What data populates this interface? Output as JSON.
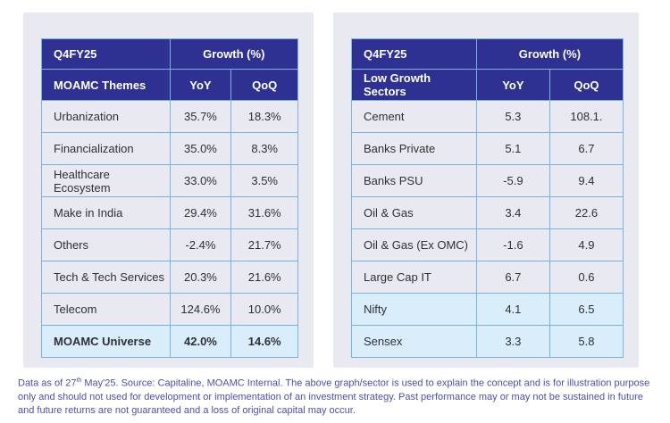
{
  "colors": {
    "header-bg": "#2e3192",
    "panel-bg": "#e9e9f1",
    "cell-bg": "#e9e9f1",
    "hl-bg": "#d9edfb",
    "border": "#79b2e0",
    "text": "#2f2f38",
    "footer": "#4b51a6"
  },
  "tables": [
    {
      "period_label": "Q4FY25",
      "growth_label": "Growth (%)",
      "category_header": "MOAMC Themes",
      "col_yoy": "YoY",
      "col_qoq": "QoQ",
      "rows": [
        {
          "name": "Urbanization",
          "yoy": "35.7%",
          "qoq": "18.3%",
          "highlight": false,
          "bold": false
        },
        {
          "name": "Financialization",
          "yoy": "35.0%",
          "qoq": "8.3%",
          "highlight": false,
          "bold": false
        },
        {
          "name": "Healthcare Ecosystem",
          "yoy": "33.0%",
          "qoq": "3.5%",
          "highlight": false,
          "bold": false
        },
        {
          "name": "Make in India",
          "yoy": "29.4%",
          "qoq": "31.6%",
          "highlight": false,
          "bold": false
        },
        {
          "name": "Others",
          "yoy": "-2.4%",
          "qoq": "21.7%",
          "highlight": false,
          "bold": false
        },
        {
          "name": "Tech & Tech Services",
          "yoy": "20.3%",
          "qoq": "21.6%",
          "highlight": false,
          "bold": false
        },
        {
          "name": "Telecom",
          "yoy": "124.6%",
          "qoq": "10.0%",
          "highlight": false,
          "bold": false
        },
        {
          "name": "MOAMC Universe",
          "yoy": "42.0%",
          "qoq": "14.6%",
          "highlight": true,
          "bold": true
        }
      ]
    },
    {
      "period_label": "Q4FY25",
      "growth_label": "Growth (%)",
      "category_header": "Low Growth Sectors",
      "col_yoy": "YoY",
      "col_qoq": "QoQ",
      "rows": [
        {
          "name": "Cement",
          "yoy": "5.3",
          "qoq": "108.1.",
          "highlight": false,
          "bold": false
        },
        {
          "name": "Banks Private",
          "yoy": "5.1",
          "qoq": "6.7",
          "highlight": false,
          "bold": false
        },
        {
          "name": "Banks PSU",
          "yoy": "-5.9",
          "qoq": "9.4",
          "highlight": false,
          "bold": false
        },
        {
          "name": "Oil & Gas",
          "yoy": "3.4",
          "qoq": "22.6",
          "highlight": false,
          "bold": false
        },
        {
          "name": "Oil & Gas (Ex OMC)",
          "yoy": "-1.6",
          "qoq": "4.9",
          "highlight": false,
          "bold": false
        },
        {
          "name": "Large Cap IT",
          "yoy": "6.7",
          "qoq": "0.6",
          "highlight": false,
          "bold": false
        },
        {
          "name": "Nifty",
          "yoy": "4.1",
          "qoq": "6.5",
          "highlight": true,
          "bold": false
        },
        {
          "name": "Sensex",
          "yoy": "3.3",
          "qoq": "5.8",
          "highlight": true,
          "bold": false
        }
      ]
    }
  ],
  "chart_data": [
    {
      "type": "table",
      "title": "Q4FY25 MOAMC Themes Growth (%)",
      "columns": [
        "MOAMC Themes",
        "YoY",
        "QoQ"
      ],
      "rows": [
        [
          "Urbanization",
          "35.7%",
          "18.3%"
        ],
        [
          "Financialization",
          "35.0%",
          "8.3%"
        ],
        [
          "Healthcare Ecosystem",
          "33.0%",
          "3.5%"
        ],
        [
          "Make in India",
          "29.4%",
          "31.6%"
        ],
        [
          "Others",
          "-2.4%",
          "21.7%"
        ],
        [
          "Tech & Tech Services",
          "20.3%",
          "21.6%"
        ],
        [
          "Telecom",
          "124.6%",
          "10.0%"
        ],
        [
          "MOAMC Universe",
          "42.0%",
          "14.6%"
        ]
      ]
    },
    {
      "type": "table",
      "title": "Q4FY25 Low Growth Sectors Growth (%)",
      "columns": [
        "Low Growth Sectors",
        "YoY",
        "QoQ"
      ],
      "rows": [
        [
          "Cement",
          "5.3",
          "108.1."
        ],
        [
          "Banks Private",
          "5.1",
          "6.7"
        ],
        [
          "Banks PSU",
          "-5.9",
          "9.4"
        ],
        [
          "Oil & Gas",
          "3.4",
          "22.6"
        ],
        [
          "Oil & Gas (Ex OMC)",
          "-1.6",
          "4.9"
        ],
        [
          "Large Cap IT",
          "6.7",
          "0.6"
        ],
        [
          "Nifty",
          "4.1",
          "6.5"
        ],
        [
          "Sensex",
          "3.3",
          "5.8"
        ]
      ]
    }
  ],
  "footer": {
    "part1": "Data as of  27",
    "sup": "th",
    "part2": " May'25. Source: Capitaline, MOAMC Internal. The above graph/sector is used to explain the concept and is for illustration purpose only and should not used for development or implementation of an investment strategy. Past performance may or may not be sustained in future and future returns are not guaranteed and a loss of original capital may occur."
  }
}
